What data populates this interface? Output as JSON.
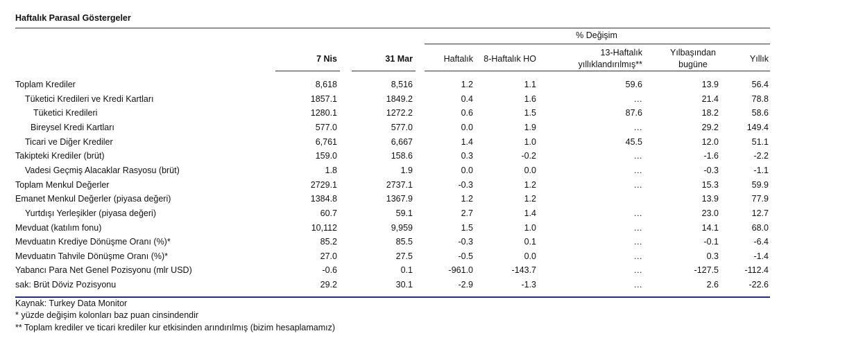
{
  "title": "Haftalık Parasal Göstergeler",
  "pct_change_header": "% Değişim",
  "columns": {
    "c1": "7 Nis",
    "c2": "31 Mar",
    "c3": "Haftalık",
    "c4": "8-Haftalık HO",
    "c5_line1": "13-Haftalık",
    "c5_line2": "yıllıklandırılmış**",
    "c6_line1": "Yılbaşından",
    "c6_line2": "bugüne",
    "c7": "Yıllık"
  },
  "rows": [
    {
      "label": "Toplam Krediler",
      "c1": "8,618",
      "c2": "8,516",
      "c3": "1.2",
      "c4": "1.1",
      "c5": "59.6",
      "c6": "13.9",
      "c7": "56.4"
    },
    {
      "label": "Tüketici Kredileri ve Kredi Kartları",
      "c1": "1857.1",
      "c2": "1849.2",
      "c3": "0.4",
      "c4": "1.6",
      "c5": "…",
      "c6": "21.4",
      "c7": "78.8"
    },
    {
      "label": "Tüketici Kredileri",
      "c1": "1280.1",
      "c2": "1272.2",
      "c3": "0.6",
      "c4": "1.5",
      "c5": "87.6",
      "c6": "18.2",
      "c7": "58.6"
    },
    {
      "label": "Bireysel Kredi Kartları",
      "c1": "577.0",
      "c2": "577.0",
      "c3": "0.0",
      "c4": "1.9",
      "c5": "…",
      "c6": "29.2",
      "c7": "149.4"
    },
    {
      "label": "Ticari ve Diğer Krediler",
      "c1": "6,761",
      "c2": "6,667",
      "c3": "1.4",
      "c4": "1.0",
      "c5": "45.5",
      "c6": "12.0",
      "c7": "51.1"
    },
    {
      "label": "Takipteki Krediler (brüt)",
      "c1": "159.0",
      "c2": "158.6",
      "c3": "0.3",
      "c4": "-0.2",
      "c5": "…",
      "c6": "-1.6",
      "c7": "-2.2"
    },
    {
      "label": "Vadesi Geçmiş Alacaklar Rasyosu (brüt)",
      "c1": "1.8",
      "c2": "1.9",
      "c3": "0.0",
      "c4": "0.0",
      "c5": "…",
      "c6": "-0.3",
      "c7": "-1.1"
    },
    {
      "label": "Toplam Menkul Değerler",
      "c1": "2729.1",
      "c2": "2737.1",
      "c3": "-0.3",
      "c4": "1.2",
      "c5": "…",
      "c6": "15.3",
      "c7": "59.9"
    },
    {
      "label": "Emanet Menkul Değerler (piyasa değeri)",
      "c1": "1384.8",
      "c2": "1367.9",
      "c3": "1.2",
      "c4": "1.2",
      "c5": "",
      "c6": "13.9",
      "c7": "77.9"
    },
    {
      "label": "Yurtdışı Yerleşikler (piyasa değeri)",
      "c1": "60.7",
      "c2": "59.1",
      "c3": "2.7",
      "c4": "1.4",
      "c5": "…",
      "c6": "23.0",
      "c7": "12.7"
    },
    {
      "label": "Mevduat (katılım fonu)",
      "c1": "10,112",
      "c2": "9,959",
      "c3": "1.5",
      "c4": "1.0",
      "c5": "…",
      "c6": "14.1",
      "c7": "68.0"
    },
    {
      "label": "Mevduatın Krediye Dönüşme Oranı (%)*",
      "c1": "85.2",
      "c2": "85.5",
      "c3": "-0.3",
      "c4": "0.1",
      "c5": "…",
      "c6": "-0.1",
      "c7": "-6.4"
    },
    {
      "label": "Mevduatın Tahvile Dönüşme Oranı (%)*",
      "c1": "27.0",
      "c2": "27.5",
      "c3": "-0.5",
      "c4": "0.0",
      "c5": "…",
      "c6": "0.3",
      "c7": "-1.4"
    },
    {
      "label": "Yabancı Para Net Genel Pozisyonu (mlr USD)",
      "c1": "-0.6",
      "c2": "0.1",
      "c3": "-961.0",
      "c4": "-143.7",
      "c5": "…",
      "c6": "-127.5",
      "c7": "-112.4"
    },
    {
      "label": "sak: Brüt Döviz Pozisyonu",
      "c1": "29.2",
      "c2": "30.1",
      "c3": "-2.9",
      "c4": "-1.3",
      "c5": "…",
      "c6": "2.6",
      "c7": "-22.6"
    }
  ],
  "footnotes": {
    "source": "Kaynak: Turkey Data Monitor",
    "note1": "* yüzde değişim kolonları baz puan cinsindendir",
    "note2": "** Toplam krediler ve ticari krediler kur etkisinden arındırılmış (bizim hesaplamamız)"
  }
}
